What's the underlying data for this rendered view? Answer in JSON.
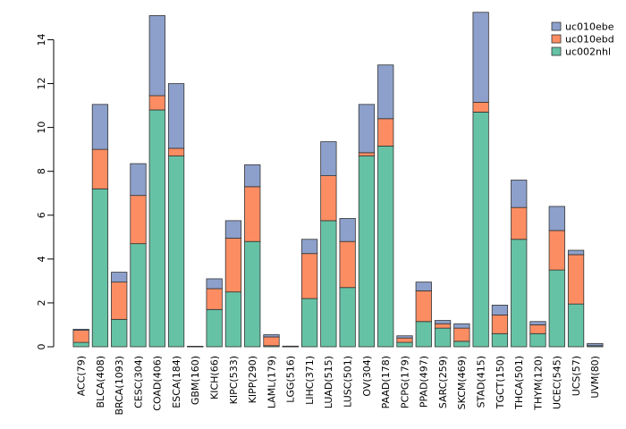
{
  "chart_data": {
    "type": "bar",
    "stacked": true,
    "title": "",
    "xlabel": "",
    "ylabel": "",
    "ylim": [
      0,
      15.2
    ],
    "yticks": [
      0,
      2,
      4,
      6,
      8,
      10,
      12,
      14
    ],
    "legend_position": "top-right",
    "categories": [
      "ACC(79)",
      "BLCA(408)",
      "BRCA(1093)",
      "CESC(304)",
      "COAD(406)",
      "ESCA(184)",
      "GBM(160)",
      "KICH(66)",
      "KIPC(533)",
      "KIPP(290)",
      "LAML(179)",
      "LGG(516)",
      "LIHC(371)",
      "LUAD(515)",
      "LUSC(501)",
      "OV(304)",
      "PAAD(178)",
      "PCPG(179)",
      "PPAD(497)",
      "SARC(259)",
      "SKCM(469)",
      "STAD(415)",
      "TGCT(150)",
      "THCA(501)",
      "THYM(120)",
      "UCEC(545)",
      "UCS(57)",
      "UVM(80)"
    ],
    "series": [
      {
        "name": "uc002nhl",
        "color": "#66c2a5",
        "values": [
          0.2,
          7.2,
          1.25,
          4.7,
          10.8,
          8.7,
          0.0,
          1.7,
          2.5,
          4.8,
          0.05,
          0.0,
          2.2,
          5.75,
          2.7,
          8.7,
          9.15,
          0.2,
          1.15,
          0.85,
          0.25,
          10.7,
          0.6,
          4.9,
          0.6,
          3.5,
          1.95,
          0.05
        ]
      },
      {
        "name": "uc010ebd",
        "color": "#fc8d62",
        "values": [
          0.55,
          1.8,
          1.7,
          2.2,
          0.65,
          0.35,
          0.0,
          0.95,
          2.45,
          2.5,
          0.4,
          0.0,
          2.05,
          2.05,
          2.1,
          0.15,
          1.25,
          0.2,
          1.4,
          0.2,
          0.6,
          0.45,
          0.85,
          1.45,
          0.4,
          1.8,
          2.25,
          0.0
        ]
      },
      {
        "name": "uc010ebe",
        "color": "#8da0cb",
        "values": [
          0.05,
          2.05,
          0.45,
          1.45,
          3.65,
          2.95,
          0.02,
          0.45,
          0.8,
          1.0,
          0.1,
          0.03,
          0.65,
          1.55,
          1.05,
          2.2,
          2.45,
          0.1,
          0.4,
          0.15,
          0.2,
          4.1,
          0.45,
          1.25,
          0.15,
          1.1,
          0.2,
          0.1
        ]
      }
    ]
  }
}
